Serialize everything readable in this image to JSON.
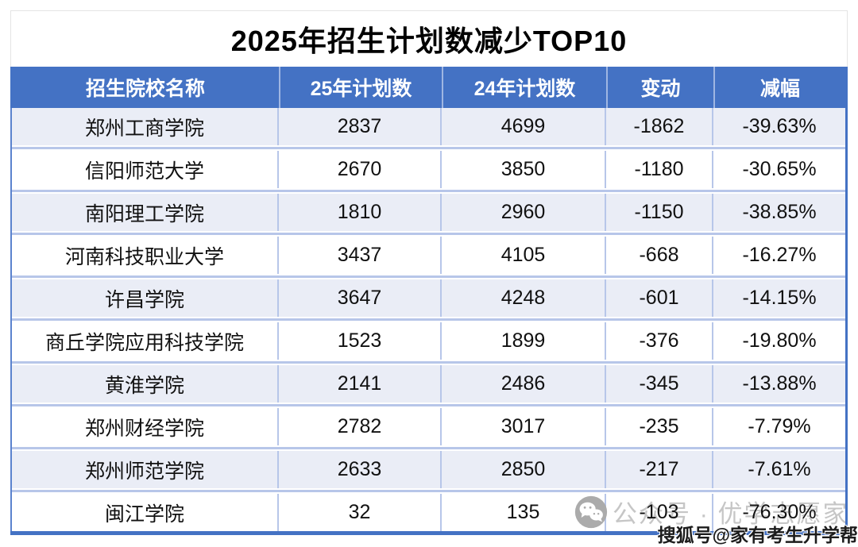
{
  "title": "2025年招生计划数减少TOP10",
  "chart_data": {
    "type": "table",
    "title": "2025年招生计划数减少TOP10",
    "columns": [
      "招生院校名称",
      "25年计划数",
      "24年计划数",
      "变动",
      "减幅"
    ],
    "rows": [
      [
        "郑州工商学院",
        2837,
        4699,
        -1862,
        "-39.63%"
      ],
      [
        "信阳师范大学",
        2670,
        3850,
        -1180,
        "-30.65%"
      ],
      [
        "南阳理工学院",
        1810,
        2960,
        -1150,
        "-38.85%"
      ],
      [
        "河南科技职业大学",
        3437,
        4105,
        -668,
        "-16.27%"
      ],
      [
        "许昌学院",
        3647,
        4248,
        -601,
        "-14.15%"
      ],
      [
        "商丘学院应用科技学院",
        1523,
        1899,
        -376,
        "-19.80%"
      ],
      [
        "黄淮学院",
        2141,
        2486,
        -345,
        "-13.88%"
      ],
      [
        "郑州财经学院",
        2782,
        3017,
        -235,
        "-7.79%"
      ],
      [
        "郑州师范学院",
        2633,
        2850,
        -217,
        "-7.61%"
      ],
      [
        "闽江学院",
        32,
        135,
        -103,
        "-76.30%"
      ]
    ],
    "layout": {
      "header_bg": "#4472C4",
      "alternating_rows": true,
      "first_data_row_shaded": true
    }
  },
  "table": {
    "headers": [
      "招生院校名称",
      "25年计划数",
      "24年计划数",
      "变动",
      "减幅"
    ],
    "rows": [
      [
        "郑州工商学院",
        "2837",
        "4699",
        "-1862",
        "-39.63%"
      ],
      [
        "信阳师范大学",
        "2670",
        "3850",
        "-1180",
        "-30.65%"
      ],
      [
        "南阳理工学院",
        "1810",
        "2960",
        "-1150",
        "-38.85%"
      ],
      [
        "河南科技职业大学",
        "3437",
        "4105",
        "-668",
        "-16.27%"
      ],
      [
        "许昌学院",
        "3647",
        "4248",
        "-601",
        "-14.15%"
      ],
      [
        "商丘学院应用科技学院",
        "1523",
        "1899",
        "-376",
        "-19.80%"
      ],
      [
        "黄淮学院",
        "2141",
        "2486",
        "-345",
        "-13.88%"
      ],
      [
        "郑州财经学院",
        "2782",
        "3017",
        "-235",
        "-7.79%"
      ],
      [
        "郑州师范学院",
        "2633",
        "2850",
        "-217",
        "-7.61%"
      ],
      [
        "闽江学院",
        "32",
        "135",
        "-103",
        "-76.30%"
      ]
    ]
  },
  "watermark": {
    "wechat_icon": "wechat-icon",
    "wechat_label": "公众号 · 优学志愿家",
    "sohu_label": "搜狐号@家有考生升学帮"
  },
  "colors": {
    "header_bg": "#4472C4",
    "accent": "#4472C4",
    "row_alt_bg": "#EAEDF6",
    "divider": "#B7C6E9"
  }
}
